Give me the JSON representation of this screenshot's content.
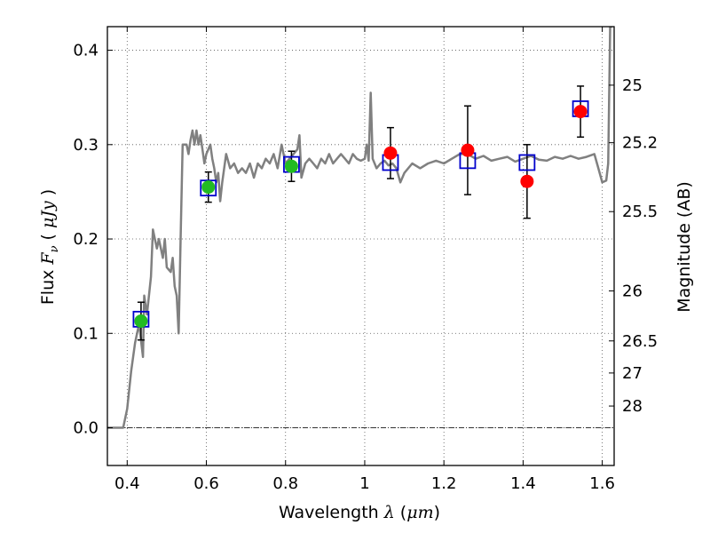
{
  "chart_data": {
    "type": "scatter",
    "title": "",
    "xlabel_prefix": "Wavelength  ",
    "xlabel_symbol": "λ",
    "xlabel_unit_open": " (",
    "xlabel_unit": "μm",
    "xlabel_unit_close": ")",
    "ylabel_prefix": "Flux  ",
    "ylabel_symbol": "F",
    "ylabel_subscript": "ν",
    "ylabel_unit_open": "  ( ",
    "ylabel_unit": "μJy",
    "ylabel_unit_close": " )",
    "y2label": "Magnitude (AB)",
    "xlim": [
      0.35,
      1.63
    ],
    "ylim": [
      -0.04,
      0.425
    ],
    "x_ticks": [
      0.4,
      0.6,
      0.8,
      1.0,
      1.2,
      1.4,
      1.6
    ],
    "x_tick_labels": [
      "0.4",
      "0.6",
      "0.8",
      "1",
      "1.2",
      "1.4",
      "1.6"
    ],
    "y_ticks": [
      0.0,
      0.1,
      0.2,
      0.3,
      0.4
    ],
    "y_tick_labels": [
      "0.0",
      "0.1",
      "0.2",
      "0.3",
      "0.4"
    ],
    "y2_ticks": [
      {
        "flux": 0.363,
        "label": "25"
      },
      {
        "flux": 0.302,
        "label": "25.2"
      },
      {
        "flux": 0.229,
        "label": "25.5"
      },
      {
        "flux": 0.145,
        "label": "26"
      },
      {
        "flux": 0.092,
        "label": "26.5"
      },
      {
        "flux": 0.058,
        "label": "27"
      },
      {
        "flux": 0.023,
        "label": "28"
      }
    ],
    "grid": true,
    "model_spectrum": {
      "color": "#808080",
      "points": [
        [
          0.35,
          0.0
        ],
        [
          0.39,
          0.0
        ],
        [
          0.4,
          0.02
        ],
        [
          0.41,
          0.06
        ],
        [
          0.42,
          0.09
        ],
        [
          0.43,
          0.11
        ],
        [
          0.44,
          0.075
        ],
        [
          0.443,
          0.14
        ],
        [
          0.45,
          0.12
        ],
        [
          0.46,
          0.16
        ],
        [
          0.465,
          0.21
        ],
        [
          0.47,
          0.2
        ],
        [
          0.475,
          0.19
        ],
        [
          0.48,
          0.2
        ],
        [
          0.49,
          0.18
        ],
        [
          0.495,
          0.2
        ],
        [
          0.5,
          0.17
        ],
        [
          0.51,
          0.165
        ],
        [
          0.515,
          0.18
        ],
        [
          0.52,
          0.15
        ],
        [
          0.525,
          0.14
        ],
        [
          0.53,
          0.1
        ],
        [
          0.535,
          0.2
        ],
        [
          0.54,
          0.3
        ],
        [
          0.55,
          0.3
        ],
        [
          0.555,
          0.29
        ],
        [
          0.56,
          0.305
        ],
        [
          0.565,
          0.315
        ],
        [
          0.57,
          0.3
        ],
        [
          0.575,
          0.315
        ],
        [
          0.58,
          0.3
        ],
        [
          0.585,
          0.31
        ],
        [
          0.59,
          0.295
        ],
        [
          0.595,
          0.28
        ],
        [
          0.6,
          0.29
        ],
        [
          0.61,
          0.3
        ],
        [
          0.615,
          0.285
        ],
        [
          0.62,
          0.275
        ],
        [
          0.625,
          0.26
        ],
        [
          0.63,
          0.27
        ],
        [
          0.635,
          0.24
        ],
        [
          0.64,
          0.26
        ],
        [
          0.65,
          0.29
        ],
        [
          0.66,
          0.275
        ],
        [
          0.67,
          0.28
        ],
        [
          0.68,
          0.27
        ],
        [
          0.69,
          0.275
        ],
        [
          0.7,
          0.27
        ],
        [
          0.71,
          0.28
        ],
        [
          0.72,
          0.265
        ],
        [
          0.73,
          0.28
        ],
        [
          0.74,
          0.275
        ],
        [
          0.75,
          0.285
        ],
        [
          0.76,
          0.28
        ],
        [
          0.77,
          0.29
        ],
        [
          0.78,
          0.275
        ],
        [
          0.79,
          0.3
        ],
        [
          0.8,
          0.28
        ],
        [
          0.81,
          0.285
        ],
        [
          0.82,
          0.29
        ],
        [
          0.83,
          0.295
        ],
        [
          0.835,
          0.31
        ],
        [
          0.84,
          0.265
        ],
        [
          0.85,
          0.28
        ],
        [
          0.86,
          0.285
        ],
        [
          0.87,
          0.28
        ],
        [
          0.88,
          0.275
        ],
        [
          0.89,
          0.285
        ],
        [
          0.9,
          0.28
        ],
        [
          0.91,
          0.29
        ],
        [
          0.92,
          0.28
        ],
        [
          0.93,
          0.285
        ],
        [
          0.94,
          0.29
        ],
        [
          0.95,
          0.285
        ],
        [
          0.96,
          0.28
        ],
        [
          0.97,
          0.29
        ],
        [
          0.98,
          0.285
        ],
        [
          0.99,
          0.283
        ],
        [
          1.0,
          0.285
        ],
        [
          1.005,
          0.3
        ],
        [
          1.01,
          0.283
        ],
        [
          1.015,
          0.355
        ],
        [
          1.02,
          0.285
        ],
        [
          1.03,
          0.275
        ],
        [
          1.04,
          0.28
        ],
        [
          1.05,
          0.283
        ],
        [
          1.06,
          0.278
        ],
        [
          1.07,
          0.28
        ],
        [
          1.08,
          0.275
        ],
        [
          1.09,
          0.26
        ],
        [
          1.1,
          0.27
        ],
        [
          1.12,
          0.28
        ],
        [
          1.14,
          0.275
        ],
        [
          1.16,
          0.28
        ],
        [
          1.18,
          0.283
        ],
        [
          1.2,
          0.28
        ],
        [
          1.22,
          0.285
        ],
        [
          1.24,
          0.29
        ],
        [
          1.26,
          0.29
        ],
        [
          1.28,
          0.285
        ],
        [
          1.3,
          0.288
        ],
        [
          1.32,
          0.283
        ],
        [
          1.34,
          0.285
        ],
        [
          1.36,
          0.287
        ],
        [
          1.38,
          0.282
        ],
        [
          1.4,
          0.285
        ],
        [
          1.42,
          0.288
        ],
        [
          1.44,
          0.284
        ],
        [
          1.46,
          0.283
        ],
        [
          1.48,
          0.287
        ],
        [
          1.5,
          0.285
        ],
        [
          1.52,
          0.288
        ],
        [
          1.54,
          0.285
        ],
        [
          1.56,
          0.287
        ],
        [
          1.58,
          0.29
        ],
        [
          1.59,
          0.275
        ],
        [
          1.6,
          0.26
        ],
        [
          1.61,
          0.262
        ],
        [
          1.615,
          0.28
        ],
        [
          1.62,
          0.43
        ],
        [
          1.625,
          0.43
        ]
      ]
    },
    "series": [
      {
        "marker": "square",
        "color": "#0000cc",
        "points": [
          {
            "x": 0.435,
            "y": 0.115
          },
          {
            "x": 0.605,
            "y": 0.254
          },
          {
            "x": 0.815,
            "y": 0.279
          },
          {
            "x": 1.065,
            "y": 0.281
          },
          {
            "x": 1.26,
            "y": 0.283
          },
          {
            "x": 1.41,
            "y": 0.281
          },
          {
            "x": 1.545,
            "y": 0.338
          }
        ]
      },
      {
        "marker": "circle",
        "color": "#22bb22",
        "points": [
          {
            "x": 0.435,
            "y": 0.113,
            "err": 0.02
          },
          {
            "x": 0.605,
            "y": 0.255,
            "err": 0.016
          },
          {
            "x": 0.815,
            "y": 0.277,
            "err": 0.016
          }
        ]
      },
      {
        "marker": "circle",
        "color": "#ff0000",
        "points": [
          {
            "x": 1.065,
            "y": 0.291,
            "err": 0.027
          },
          {
            "x": 1.26,
            "y": 0.294,
            "err": 0.047
          },
          {
            "x": 1.41,
            "y": 0.261,
            "err": 0.039
          },
          {
            "x": 1.545,
            "y": 0.335,
            "err": 0.027
          }
        ]
      }
    ]
  }
}
